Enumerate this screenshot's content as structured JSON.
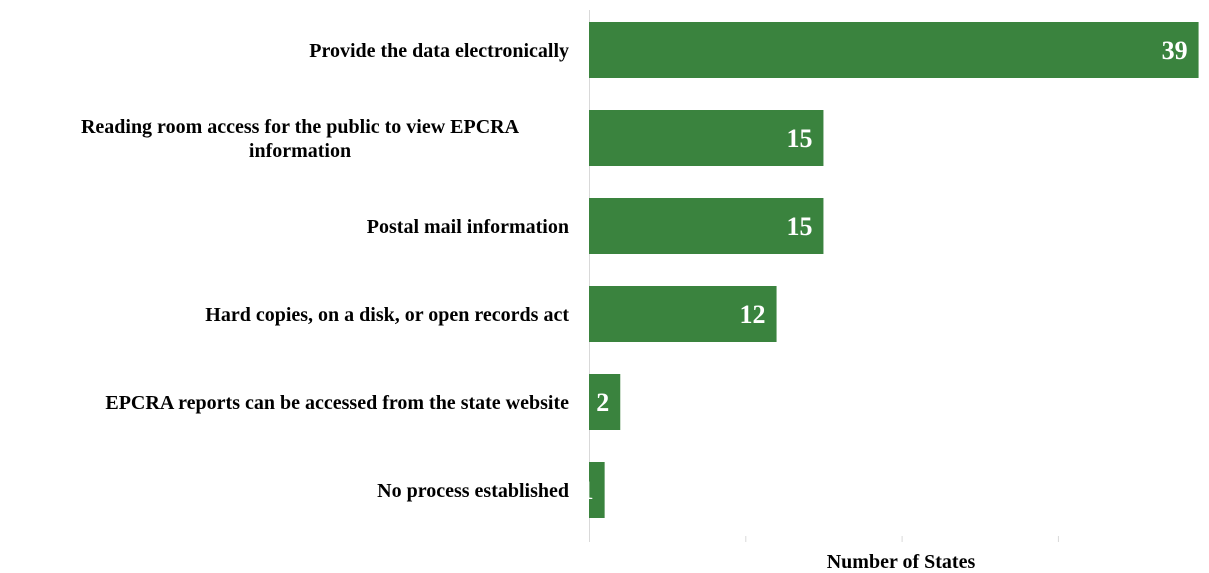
{
  "colors": {
    "bar": "#3a833e",
    "axis": "#d9d9d9",
    "label_text": "#000000",
    "value_text": "#ffffff"
  },
  "chart_data": {
    "type": "bar",
    "orientation": "horizontal",
    "categories": [
      "Provide the data electronically",
      "Reading room access for the public to view EPCRA information",
      "Postal mail information",
      "Hard copies, on a disk, or open records act",
      "EPCRA reports can be accessed from the state website",
      "No process established"
    ],
    "category_lines": [
      [
        "Provide the data electronically"
      ],
      [
        "Reading room access for the public to view EPCRA",
        "information"
      ],
      [
        "Postal mail information"
      ],
      [
        "Hard copies, on a disk, or open records act"
      ],
      [
        "EPCRA reports can be accessed from the state website"
      ],
      [
        "No process established"
      ]
    ],
    "values": [
      39,
      15,
      15,
      12,
      2,
      1
    ],
    "xlabel": "Number of States",
    "ylabel": "",
    "xlim": [
      0,
      40
    ],
    "xtick_step": 10,
    "grid": false,
    "data_labels": true
  }
}
